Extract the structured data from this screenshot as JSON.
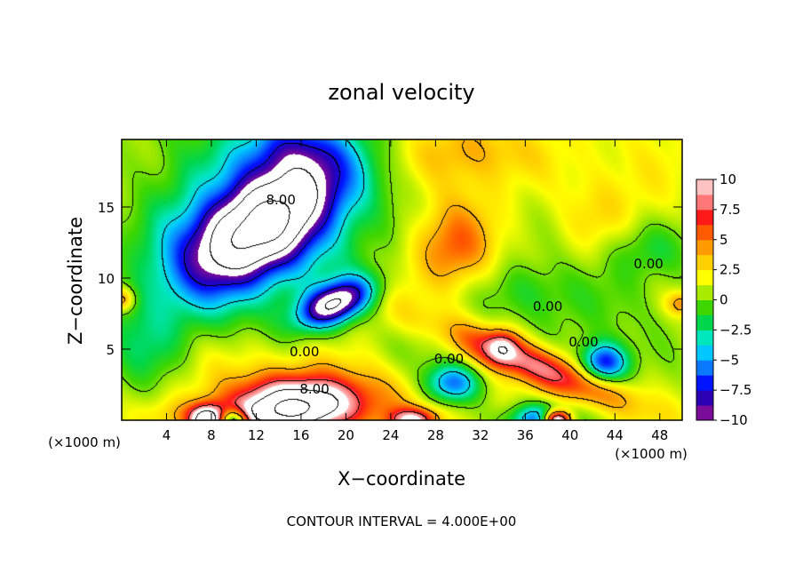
{
  "chart_data": {
    "type": "heatmap",
    "title": "zonal velocity",
    "xlabel": "X−coordinate",
    "ylabel": "Z−coordinate",
    "x_unit": "(×1000 m)",
    "z_unit": "(×1000 m)",
    "footer": "CONTOUR INTERVAL = 4.000E+00",
    "xlim": [
      0,
      50
    ],
    "ylim": [
      0,
      19.75
    ],
    "x_ticks": [
      {
        "value": 4,
        "label": "4"
      },
      {
        "value": 8,
        "label": "8"
      },
      {
        "value": 12,
        "label": "12"
      },
      {
        "value": 16,
        "label": "16"
      },
      {
        "value": 20,
        "label": "20"
      },
      {
        "value": 24,
        "label": "24"
      },
      {
        "value": 28,
        "label": "28"
      },
      {
        "value": 32,
        "label": "32"
      },
      {
        "value": 36,
        "label": "36"
      },
      {
        "value": 40,
        "label": "40"
      },
      {
        "value": 44,
        "label": "44"
      },
      {
        "value": 48,
        "label": "48"
      }
    ],
    "y_ticks": [
      {
        "value": 5,
        "label": "5"
      },
      {
        "value": 10,
        "label": "10"
      },
      {
        "value": 15,
        "label": "15"
      }
    ],
    "colorbar": {
      "range": [
        -10,
        10
      ],
      "tick_values": [
        10,
        7.5,
        5,
        2.5,
        0,
        -2.5,
        -5,
        -7.5,
        -10
      ],
      "tick_labels": [
        "10",
        "7.5",
        "5",
        "2.5",
        "0",
        "−2.5",
        "−5",
        "−7.5",
        "−10"
      ],
      "colors": [
        "#7a0c99",
        "#2b00b5",
        "#0014ff",
        "#0a78ff",
        "#00c8ff",
        "#00e6bd",
        "#00d64b",
        "#3ed600",
        "#a8ea00",
        "#ffff00",
        "#ffd000",
        "#ff9a00",
        "#ff5a00",
        "#ff1a1a",
        "#ff7878",
        "#ffc2c2"
      ]
    },
    "contour_labels": [
      {
        "text": "8.00",
        "x": 14.2,
        "z": 15.5
      },
      {
        "text": "8.00",
        "x": 17.2,
        "z": 2.2
      },
      {
        "text": "0.00",
        "x": 16.3,
        "z": 4.8
      },
      {
        "text": "0.00",
        "x": 29.2,
        "z": 4.3
      },
      {
        "text": "0.00",
        "x": 38.0,
        "z": 8.0
      },
      {
        "text": "0.00",
        "x": 41.2,
        "z": 5.5
      },
      {
        "text": "0.00",
        "x": 47.0,
        "z": 11.0
      }
    ],
    "features": [
      {
        "x": 12.3,
        "z": 13.7,
        "sx": 5.2,
        "sz": 2.3,
        "amp": -15,
        "rot": 0.42
      },
      {
        "x": 13.8,
        "z": 12.2,
        "sx": 8.0,
        "sz": 5.0,
        "amp": -4,
        "rot": 0.3
      },
      {
        "x": 19.0,
        "z": 8.2,
        "sx": 2.4,
        "sz": 1.0,
        "amp": -12,
        "rot": 0.3
      },
      {
        "x": 15.2,
        "z": 19.0,
        "sx": 3.5,
        "sz": 2.0,
        "amp": -6,
        "rot": 0.0
      },
      {
        "x": 6.0,
        "z": 16.5,
        "sx": 4.0,
        "sz": 5.0,
        "amp": -1.6,
        "rot": 0.0
      },
      {
        "x": 16.0,
        "z": 1.2,
        "sx": 4.0,
        "sz": 1.3,
        "amp": 12,
        "rot": 0.0
      },
      {
        "x": 11.0,
        "z": 0.3,
        "sx": 4.5,
        "sz": 0.8,
        "amp": 5,
        "rot": 0.0
      },
      {
        "x": 10.0,
        "z": 0.0,
        "sx": 0.9,
        "sz": 0.6,
        "amp": -10,
        "rot": 0.0
      },
      {
        "x": 16.0,
        "z": 3.0,
        "sx": 10.0,
        "sz": 3.0,
        "amp": 2.5,
        "rot": 0.0
      },
      {
        "x": 29.5,
        "z": 12.0,
        "sx": 2.5,
        "sz": 2.0,
        "amp": 4.5,
        "rot": 0.0
      },
      {
        "x": 30.0,
        "z": 16.0,
        "sx": 3.0,
        "sz": 3.0,
        "amp": 1.5,
        "rot": 0.0
      },
      {
        "x": 31.0,
        "z": 19.0,
        "sx": 5.0,
        "sz": 1.6,
        "amp": 2.5,
        "rot": 0.0
      },
      {
        "x": 2.0,
        "z": 5.0,
        "sx": 2.5,
        "sz": 2.5,
        "amp": -3,
        "rot": 0.0
      },
      {
        "x": 24.0,
        "z": 9.0,
        "sx": 2.0,
        "sz": 4.0,
        "amp": 1.0,
        "rot": 0.0
      },
      {
        "x": 29.5,
        "z": 2.6,
        "sx": 1.8,
        "sz": 1.0,
        "amp": -8,
        "rot": 0.0
      },
      {
        "x": 25.0,
        "z": 5.0,
        "sx": 4.0,
        "sz": 1.5,
        "amp": -2,
        "rot": 0.0
      },
      {
        "x": 37.0,
        "z": 3.8,
        "sx": 6.0,
        "sz": 1.0,
        "amp": 8,
        "rot": -0.3
      },
      {
        "x": 34.0,
        "z": 5.2,
        "sx": 1.0,
        "sz": 0.8,
        "amp": 5,
        "rot": 0.0
      },
      {
        "x": 37.5,
        "z": 0.0,
        "sx": 2.0,
        "sz": 0.8,
        "amp": -9,
        "rot": 0.0
      },
      {
        "x": 38.8,
        "z": 0.0,
        "sx": 0.9,
        "sz": 0.5,
        "amp": 16,
        "rot": 0.0
      },
      {
        "x": 43.0,
        "z": 4.0,
        "sx": 1.5,
        "sz": 1.0,
        "amp": -9,
        "rot": 0.0
      },
      {
        "x": 43.0,
        "z": 8.0,
        "sx": 6.0,
        "sz": 3.0,
        "amp": -1.5,
        "rot": 0.0
      },
      {
        "x": 47.0,
        "z": 12.0,
        "sx": 3.0,
        "sz": 1.5,
        "amp": -2.5,
        "rot": 0.0
      },
      {
        "x": 45.0,
        "z": 16.0,
        "sx": 4.0,
        "sz": 4.0,
        "amp": 1.2,
        "rot": 0.0
      },
      {
        "x": 26.0,
        "z": 0.0,
        "sx": 1.5,
        "sz": 0.6,
        "amp": 8,
        "rot": 0.0
      },
      {
        "x": 7.5,
        "z": 0.0,
        "sx": 1.0,
        "sz": 0.7,
        "amp": 10,
        "rot": 0.0
      },
      {
        "x": 42.0,
        "z": 14.0,
        "sx": 2.0,
        "sz": 2.0,
        "amp": 1.0,
        "rot": 0.0
      },
      {
        "x": 50.0,
        "z": 8.2,
        "sx": 1.0,
        "sz": 0.6,
        "amp": 4,
        "rot": 0.0
      },
      {
        "x": 0.0,
        "z": 8.5,
        "sx": 0.8,
        "sz": 0.6,
        "amp": 5,
        "rot": 0.0
      },
      {
        "x": 36.0,
        "z": 9.0,
        "sx": 3.0,
        "sz": 1.5,
        "amp": -2.0,
        "rot": 0.0
      }
    ],
    "background": 1.2
  }
}
